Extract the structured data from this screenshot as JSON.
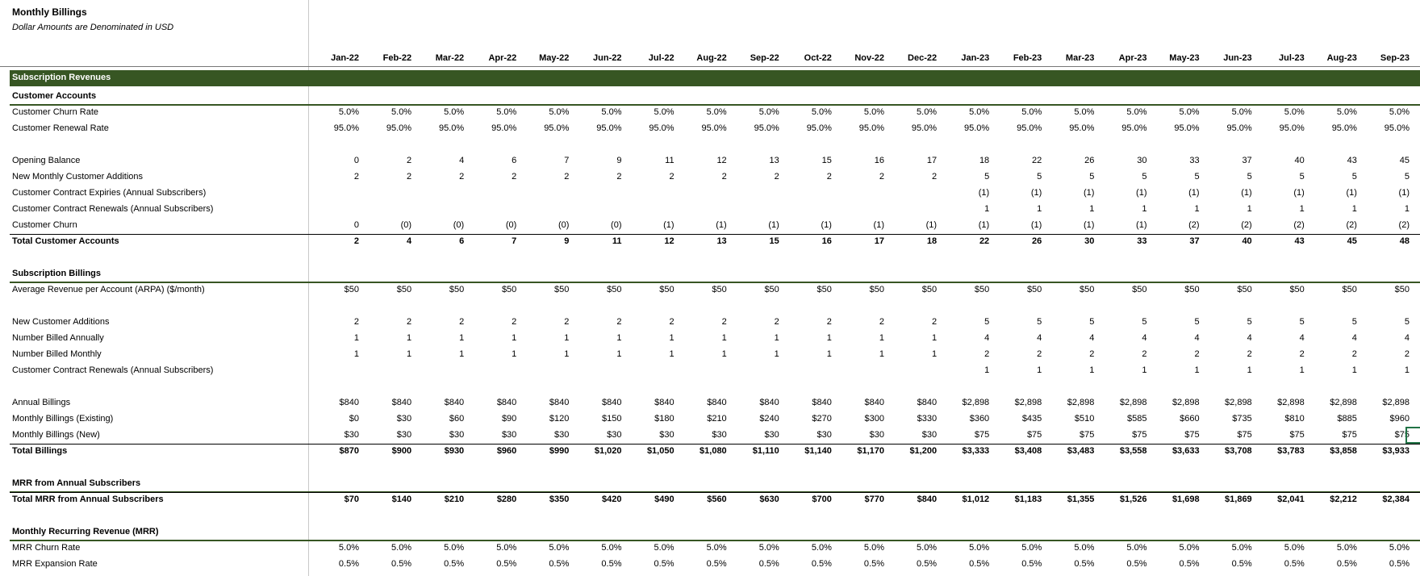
{
  "title": "Monthly Billings",
  "subtitle": "Dollar Amounts are Denominated in USD",
  "months": [
    "Jan-22",
    "Feb-22",
    "Mar-22",
    "Apr-22",
    "May-22",
    "Jun-22",
    "Jul-22",
    "Aug-22",
    "Sep-22",
    "Oct-22",
    "Nov-22",
    "Dec-22",
    "Jan-23",
    "Feb-23",
    "Mar-23",
    "Apr-23",
    "May-23",
    "Jun-23",
    "Jul-23",
    "Aug-23",
    "Sep-23"
  ],
  "section_title": "Subscription Revenues",
  "rows": [
    {
      "label": "Customer Accounts",
      "type": "heading"
    },
    {
      "label": "Customer Churn Rate",
      "values": [
        "5.0%",
        "5.0%",
        "5.0%",
        "5.0%",
        "5.0%",
        "5.0%",
        "5.0%",
        "5.0%",
        "5.0%",
        "5.0%",
        "5.0%",
        "5.0%",
        "5.0%",
        "5.0%",
        "5.0%",
        "5.0%",
        "5.0%",
        "5.0%",
        "5.0%",
        "5.0%",
        "5.0%"
      ]
    },
    {
      "label": "Customer Renewal Rate",
      "values": [
        "95.0%",
        "95.0%",
        "95.0%",
        "95.0%",
        "95.0%",
        "95.0%",
        "95.0%",
        "95.0%",
        "95.0%",
        "95.0%",
        "95.0%",
        "95.0%",
        "95.0%",
        "95.0%",
        "95.0%",
        "95.0%",
        "95.0%",
        "95.0%",
        "95.0%",
        "95.0%",
        "95.0%"
      ]
    },
    {
      "type": "blank"
    },
    {
      "label": "Opening Balance",
      "values": [
        "0",
        "2",
        "4",
        "6",
        "7",
        "9",
        "11",
        "12",
        "13",
        "15",
        "16",
        "17",
        "18",
        "22",
        "26",
        "30",
        "33",
        "37",
        "40",
        "43",
        "45"
      ]
    },
    {
      "label": "New Monthly Customer Additions",
      "values": [
        "2",
        "2",
        "2",
        "2",
        "2",
        "2",
        "2",
        "2",
        "2",
        "2",
        "2",
        "2",
        "5",
        "5",
        "5",
        "5",
        "5",
        "5",
        "5",
        "5",
        "5"
      ]
    },
    {
      "label": "Customer Contract Expiries (Annual Subscribers)",
      "values": [
        "",
        "",
        "",
        "",
        "",
        "",
        "",
        "",
        "",
        "",
        "",
        "",
        "(1)",
        "(1)",
        "(1)",
        "(1)",
        "(1)",
        "(1)",
        "(1)",
        "(1)",
        "(1)"
      ]
    },
    {
      "label": "Customer Contract Renewals (Annual Subscribers)",
      "values": [
        "",
        "",
        "",
        "",
        "",
        "",
        "",
        "",
        "",
        "",
        "",
        "",
        "1",
        "1",
        "1",
        "1",
        "1",
        "1",
        "1",
        "1",
        "1"
      ]
    },
    {
      "label": "Customer Churn",
      "values": [
        "0",
        "(0)",
        "(0)",
        "(0)",
        "(0)",
        "(0)",
        "(1)",
        "(1)",
        "(1)",
        "(1)",
        "(1)",
        "(1)",
        "(1)",
        "(1)",
        "(1)",
        "(1)",
        "(2)",
        "(2)",
        "(2)",
        "(2)",
        "(2)"
      ]
    },
    {
      "label": "Total Customer Accounts",
      "type": "total",
      "values": [
        "2",
        "4",
        "6",
        "7",
        "9",
        "11",
        "12",
        "13",
        "15",
        "16",
        "17",
        "18",
        "22",
        "26",
        "30",
        "33",
        "37",
        "40",
        "43",
        "45",
        "48"
      ]
    },
    {
      "type": "blank"
    },
    {
      "label": "Subscription Billings",
      "type": "heading"
    },
    {
      "label": "Average Revenue per Account (ARPA) ($/month)",
      "values": [
        "$50",
        "$50",
        "$50",
        "$50",
        "$50",
        "$50",
        "$50",
        "$50",
        "$50",
        "$50",
        "$50",
        "$50",
        "$50",
        "$50",
        "$50",
        "$50",
        "$50",
        "$50",
        "$50",
        "$50",
        "$50"
      ]
    },
    {
      "type": "blank"
    },
    {
      "label": "New Customer Additions",
      "values": [
        "2",
        "2",
        "2",
        "2",
        "2",
        "2",
        "2",
        "2",
        "2",
        "2",
        "2",
        "2",
        "5",
        "5",
        "5",
        "5",
        "5",
        "5",
        "5",
        "5",
        "5"
      ]
    },
    {
      "label": "Number Billed Annually",
      "values": [
        "1",
        "1",
        "1",
        "1",
        "1",
        "1",
        "1",
        "1",
        "1",
        "1",
        "1",
        "1",
        "4",
        "4",
        "4",
        "4",
        "4",
        "4",
        "4",
        "4",
        "4"
      ]
    },
    {
      "label": "Number Billed Monthly",
      "values": [
        "1",
        "1",
        "1",
        "1",
        "1",
        "1",
        "1",
        "1",
        "1",
        "1",
        "1",
        "1",
        "2",
        "2",
        "2",
        "2",
        "2",
        "2",
        "2",
        "2",
        "2"
      ]
    },
    {
      "label": "Customer Contract Renewals (Annual Subscribers)",
      "values": [
        "",
        "",
        "",
        "",
        "",
        "",
        "",
        "",
        "",
        "",
        "",
        "",
        "1",
        "1",
        "1",
        "1",
        "1",
        "1",
        "1",
        "1",
        "1"
      ]
    },
    {
      "type": "blank"
    },
    {
      "label": "Annual Billings",
      "values": [
        "$840",
        "$840",
        "$840",
        "$840",
        "$840",
        "$840",
        "$840",
        "$840",
        "$840",
        "$840",
        "$840",
        "$840",
        "$2,898",
        "$2,898",
        "$2,898",
        "$2,898",
        "$2,898",
        "$2,898",
        "$2,898",
        "$2,898",
        "$2,898"
      ]
    },
    {
      "label": "Monthly Billings (Existing)",
      "values": [
        "$0",
        "$30",
        "$60",
        "$90",
        "$120",
        "$150",
        "$180",
        "$210",
        "$240",
        "$270",
        "$300",
        "$330",
        "$360",
        "$435",
        "$510",
        "$585",
        "$660",
        "$735",
        "$810",
        "$885",
        "$960"
      ]
    },
    {
      "label": "Monthly Billings (New)",
      "values": [
        "$30",
        "$30",
        "$30",
        "$30",
        "$30",
        "$30",
        "$30",
        "$30",
        "$30",
        "$30",
        "$30",
        "$30",
        "$75",
        "$75",
        "$75",
        "$75",
        "$75",
        "$75",
        "$75",
        "$75",
        "$75"
      ]
    },
    {
      "label": "Total Billings",
      "type": "total",
      "values": [
        "$870",
        "$900",
        "$930",
        "$960",
        "$990",
        "$1,020",
        "$1,050",
        "$1,080",
        "$1,110",
        "$1,140",
        "$1,170",
        "$1,200",
        "$3,333",
        "$3,408",
        "$3,483",
        "$3,558",
        "$3,633",
        "$3,708",
        "$3,783",
        "$3,858",
        "$3,933"
      ]
    },
    {
      "type": "blank"
    },
    {
      "label": "MRR from Annual Subscribers",
      "type": "heading"
    },
    {
      "label": "Total MRR from Annual Subscribers",
      "type": "total",
      "values": [
        "$70",
        "$140",
        "$210",
        "$280",
        "$350",
        "$420",
        "$490",
        "$560",
        "$630",
        "$700",
        "$770",
        "$840",
        "$1,012",
        "$1,183",
        "$1,355",
        "$1,526",
        "$1,698",
        "$1,869",
        "$2,041",
        "$2,212",
        "$2,384"
      ]
    },
    {
      "type": "blank"
    },
    {
      "label": "Monthly Recurring Revenue (MRR)",
      "type": "heading"
    },
    {
      "label": "MRR Churn Rate",
      "values": [
        "5.0%",
        "5.0%",
        "5.0%",
        "5.0%",
        "5.0%",
        "5.0%",
        "5.0%",
        "5.0%",
        "5.0%",
        "5.0%",
        "5.0%",
        "5.0%",
        "5.0%",
        "5.0%",
        "5.0%",
        "5.0%",
        "5.0%",
        "5.0%",
        "5.0%",
        "5.0%",
        "5.0%"
      ]
    },
    {
      "label": "MRR Expansion Rate",
      "values": [
        "0.5%",
        "0.5%",
        "0.5%",
        "0.5%",
        "0.5%",
        "0.5%",
        "0.5%",
        "0.5%",
        "0.5%",
        "0.5%",
        "0.5%",
        "0.5%",
        "0.5%",
        "0.5%",
        "0.5%",
        "0.5%",
        "0.5%",
        "0.5%",
        "0.5%",
        "0.5%",
        "0.5%"
      ]
    }
  ],
  "colors": {
    "band": "#375623",
    "band_text": "#ffffff",
    "selection": "#217346"
  }
}
